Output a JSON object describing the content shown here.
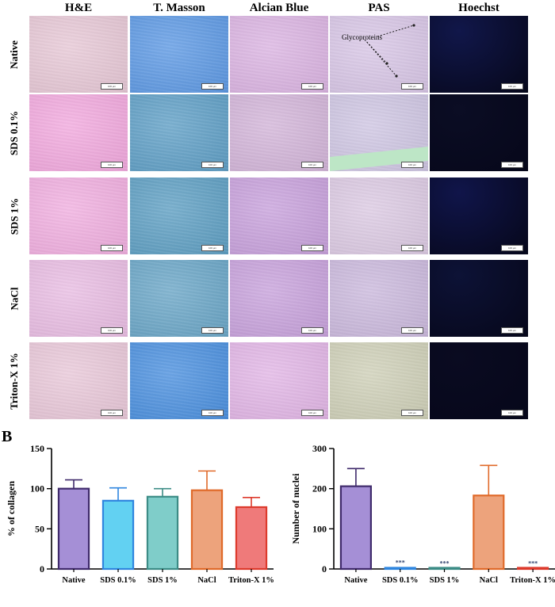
{
  "columns": [
    "H&E",
    "T. Masson",
    "Alcian Blue",
    "PAS",
    "Hoechst"
  ],
  "rows": [
    "Native",
    "SDS 0.1%",
    "SDS 1%",
    "NaCl",
    "Triton-X 1%"
  ],
  "scale_bar_label": "100 µm",
  "annotation": "Glycoproteins",
  "panel_b_label": "B",
  "tile_colors": {
    "H&E": [
      "#e7c8d6",
      "#f2a9de",
      "#f1afe0",
      "#e9bde3",
      "#e9c8d9"
    ],
    "T. Masson": [
      "#5d99e4",
      "#5f9fc6",
      "#5e9fc3",
      "#6aa6c7",
      "#4b90df"
    ],
    "Alcian Blue": [
      "#dbb4e2",
      "#d3b5d9",
      "#c8a1dc",
      "#c8a2dc",
      "#e2b6e6"
    ],
    "PAS": [
      "#d8c6e6",
      "#cfc6e3",
      "#dccae3",
      "#cbb9dd",
      "#cfd0b8"
    ],
    "Hoechst": [
      "#11174a",
      "#0b0d24",
      "#10154a",
      "#0d1236",
      "#0a0b21"
    ]
  },
  "chart_data": [
    {
      "type": "bar",
      "title": "",
      "xlabel": "",
      "ylabel": "% of collagen",
      "categories": [
        "Native",
        "SDS 0.1%",
        "SDS 1%",
        "NaCl",
        "Triton-X 1%"
      ],
      "values": [
        100,
        85,
        90,
        98,
        77
      ],
      "errors": [
        11,
        16,
        10,
        24,
        12
      ],
      "ylim": [
        0,
        150
      ],
      "yticks": [
        0,
        50,
        100,
        150
      ],
      "significance": [
        "",
        "",
        "",
        "",
        ""
      ],
      "fill_colors": [
        "#a58fd6",
        "#62d1f2",
        "#7fcdc9",
        "#eda37c",
        "#ef7a7a"
      ],
      "edge_colors": [
        "#3f2a6b",
        "#2f86df",
        "#3c8c86",
        "#e06a2a",
        "#dd3a2c"
      ]
    },
    {
      "type": "bar",
      "title": "",
      "xlabel": "",
      "ylabel": "Number of nuclei",
      "categories": [
        "Native",
        "SDS 0.1%",
        "SDS 1%",
        "NaCl",
        "Triton-X 1%"
      ],
      "values": [
        206,
        3,
        1,
        183,
        1
      ],
      "errors": [
        44,
        0,
        0,
        75,
        0
      ],
      "ylim": [
        0,
        300
      ],
      "yticks": [
        0,
        100,
        200,
        300
      ],
      "significance": [
        "",
        "***",
        "***",
        "",
        "***"
      ],
      "fill_colors": [
        "#a58fd6",
        "#62d1f2",
        "#7fcdc9",
        "#eda37c",
        "#ef7a7a"
      ],
      "edge_colors": [
        "#3f2a6b",
        "#2f86df",
        "#3c8c86",
        "#e06a2a",
        "#dd3a2c"
      ]
    }
  ]
}
